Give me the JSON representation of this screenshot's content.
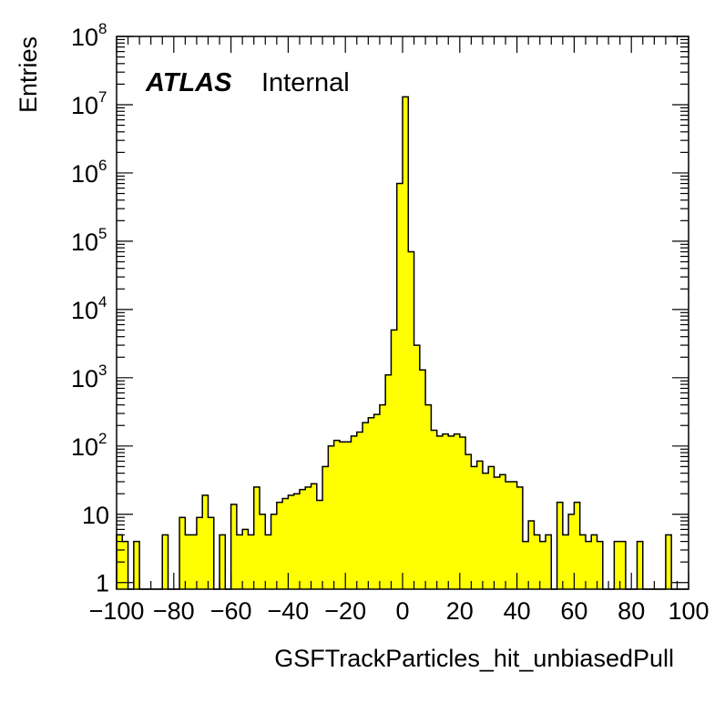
{
  "chart_data": {
    "type": "bar",
    "histogram": true,
    "title": "",
    "xlabel": "GSFTrackParticles_hit_unbiasedPull",
    "ylabel": "Entries",
    "xlim": [
      -100,
      100
    ],
    "ylim": [
      0.8,
      100000000
    ],
    "log_y": true,
    "grid": false,
    "bin_width": 2,
    "bins_low_edges": [
      -100,
      -98,
      -96,
      -94,
      -92,
      -90,
      -88,
      -86,
      -84,
      -82,
      -80,
      -78,
      -76,
      -74,
      -72,
      -70,
      -68,
      -66,
      -64,
      -62,
      -60,
      -58,
      -56,
      -54,
      -52,
      -50,
      -48,
      -46,
      -44,
      -42,
      -40,
      -38,
      -36,
      -34,
      -32,
      -30,
      -28,
      -26,
      -24,
      -22,
      -20,
      -18,
      -16,
      -14,
      -12,
      -10,
      -8,
      -6,
      -4,
      -2,
      0,
      2,
      4,
      6,
      8,
      10,
      12,
      14,
      16,
      18,
      20,
      22,
      24,
      26,
      28,
      30,
      32,
      34,
      36,
      38,
      40,
      42,
      44,
      46,
      48,
      50,
      52,
      54,
      56,
      58,
      60,
      62,
      64,
      66,
      68,
      70,
      72,
      74,
      76,
      78,
      80,
      82,
      84,
      86,
      88,
      90,
      92,
      94,
      96,
      98
    ],
    "values": [
      5,
      4,
      0,
      4,
      0,
      0,
      0,
      0,
      5,
      0,
      0,
      9,
      5,
      5,
      9,
      19,
      9,
      0,
      5,
      0,
      14,
      5,
      6,
      5,
      25,
      10,
      5,
      10,
      15,
      17,
      19,
      20,
      23,
      25,
      28,
      16,
      50,
      100,
      121,
      115,
      115,
      140,
      160,
      220,
      260,
      290,
      400,
      1100,
      5000,
      700000,
      13000000,
      70000,
      3000,
      1300,
      400,
      170,
      140,
      150,
      140,
      150,
      135,
      75,
      50,
      60,
      40,
      50,
      35,
      38,
      30,
      30,
      25,
      4,
      8,
      5,
      4,
      5,
      0,
      15,
      5,
      10,
      15,
      5,
      4,
      5,
      4,
      0,
      0,
      4,
      4,
      0,
      0,
      4,
      0,
      0,
      0,
      0,
      5,
      0,
      0,
      0
    ],
    "x_ticks": [
      "−100",
      "−80",
      "−60",
      "−40",
      "−20",
      "0",
      "20",
      "40",
      "60",
      "80",
      "100"
    ],
    "y_ticks": [
      {
        "base": "1",
        "exp": ""
      },
      {
        "base": "10",
        "exp": ""
      },
      {
        "base": "10",
        "exp": "2"
      },
      {
        "base": "10",
        "exp": "3"
      },
      {
        "base": "10",
        "exp": "4"
      },
      {
        "base": "10",
        "exp": "5"
      },
      {
        "base": "10",
        "exp": "6"
      },
      {
        "base": "10",
        "exp": "7"
      },
      {
        "base": "10",
        "exp": "8"
      }
    ],
    "annotations": [
      {
        "bold": "ATLAS",
        "text": "Internal"
      }
    ],
    "colors": {
      "fill": "#ffff00",
      "line": "#000000",
      "frame": "#000000"
    }
  }
}
